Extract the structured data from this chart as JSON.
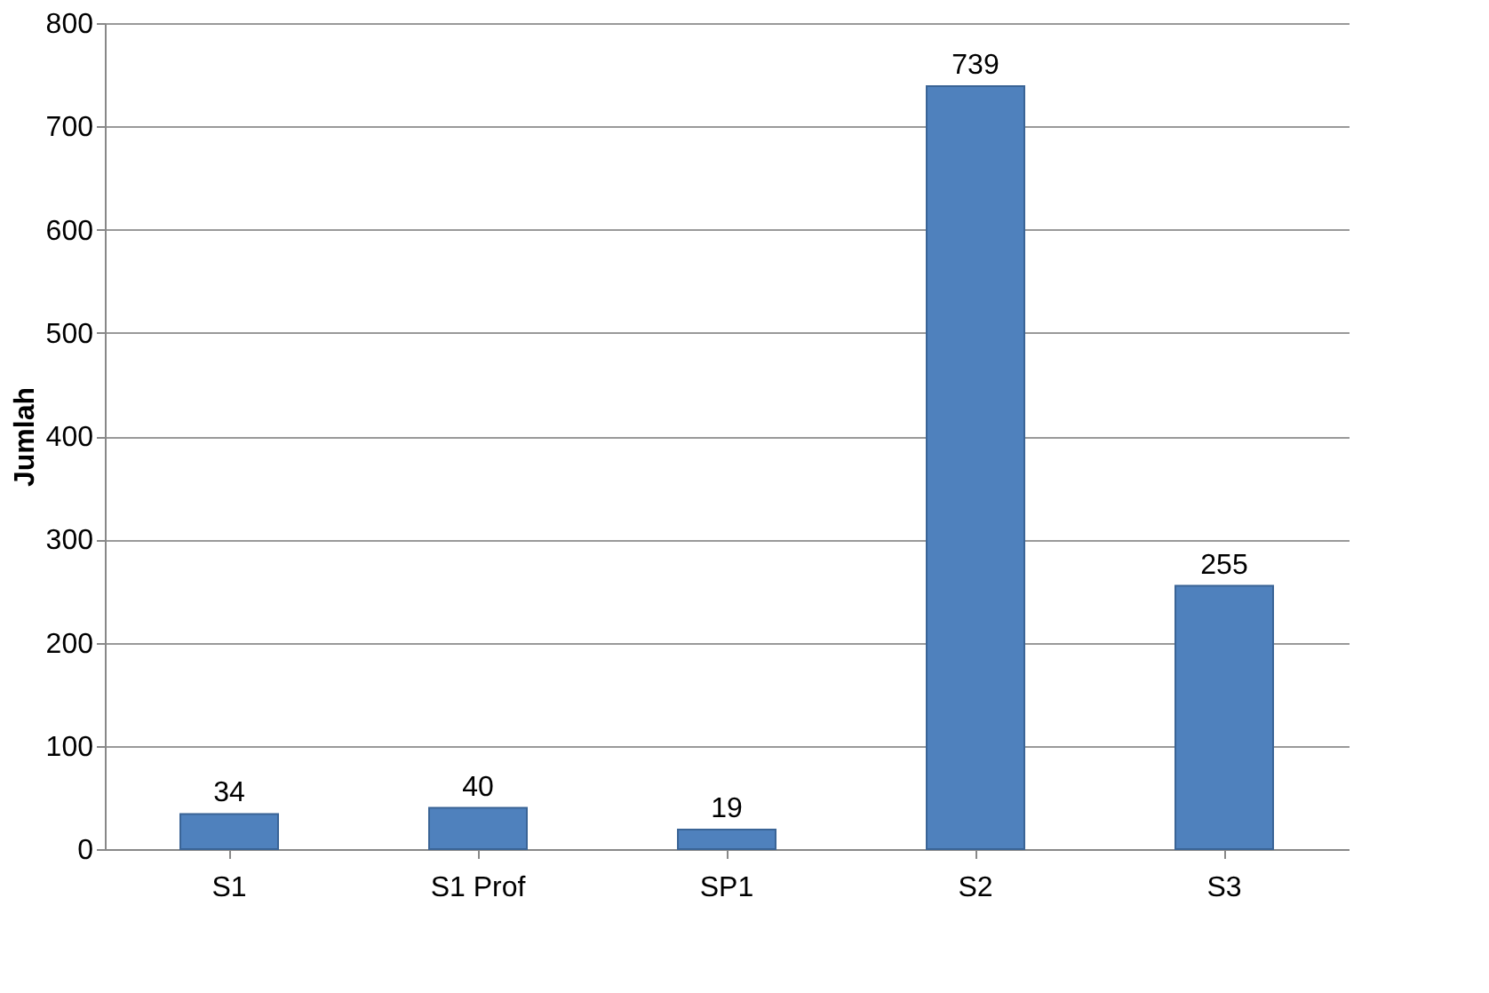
{
  "chart_data": {
    "type": "bar",
    "ylabel": "Jumlah",
    "categories": [
      "S1",
      "S1 Prof",
      "SP1",
      "S2",
      "S3"
    ],
    "values": [
      34,
      40,
      19,
      739,
      255
    ],
    "color": "#4f81bd",
    "ylim": [
      0,
      800
    ],
    "yticks": [
      0,
      100,
      200,
      300,
      400,
      500,
      600,
      700,
      800
    ],
    "grid": "y",
    "data_labels": true
  }
}
